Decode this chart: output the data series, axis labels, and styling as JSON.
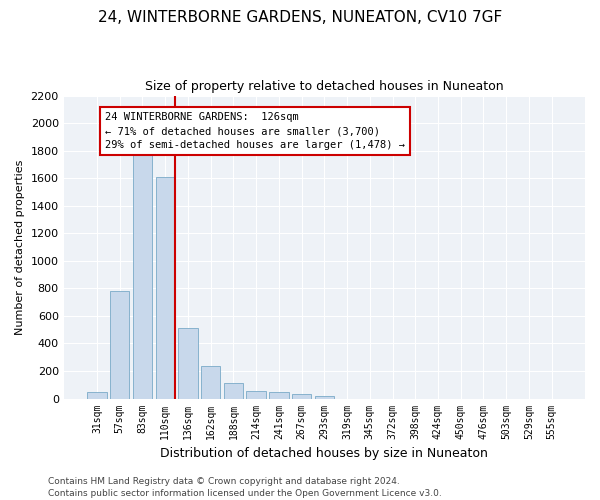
{
  "title1": "24, WINTERBORNE GARDENS, NUNEATON, CV10 7GF",
  "title2": "Size of property relative to detached houses in Nuneaton",
  "xlabel": "Distribution of detached houses by size in Nuneaton",
  "ylabel": "Number of detached properties",
  "categories": [
    "31sqm",
    "57sqm",
    "83sqm",
    "110sqm",
    "136sqm",
    "162sqm",
    "188sqm",
    "214sqm",
    "241sqm",
    "267sqm",
    "293sqm",
    "319sqm",
    "345sqm",
    "372sqm",
    "398sqm",
    "424sqm",
    "450sqm",
    "476sqm",
    "503sqm",
    "529sqm",
    "555sqm"
  ],
  "values": [
    50,
    780,
    1810,
    1610,
    515,
    235,
    110,
    55,
    50,
    30,
    15,
    0,
    0,
    0,
    0,
    0,
    0,
    0,
    0,
    0,
    0
  ],
  "bar_color": "#c8d8eb",
  "bar_edge_color": "#7aaac8",
  "vline_color": "#cc0000",
  "annotation_line1": "24 WINTERBORNE GARDENS:  126sqm",
  "annotation_line2": "← 71% of detached houses are smaller (3,700)",
  "annotation_line3": "29% of semi-detached houses are larger (1,478) →",
  "annotation_box_color": "#cc0000",
  "ylim": [
    0,
    2200
  ],
  "yticks": [
    0,
    200,
    400,
    600,
    800,
    1000,
    1200,
    1400,
    1600,
    1800,
    2000,
    2200
  ],
  "footer1": "Contains HM Land Registry data © Crown copyright and database right 2024.",
  "footer2": "Contains public sector information licensed under the Open Government Licence v3.0.",
  "plot_bg_color": "#eef2f7",
  "title1_fontsize": 11,
  "title2_fontsize": 9,
  "ylabel_fontsize": 8,
  "xlabel_fontsize": 9,
  "ytick_fontsize": 8,
  "xtick_fontsize": 7,
  "footer_fontsize": 6.5,
  "annotation_fontsize": 7.5
}
